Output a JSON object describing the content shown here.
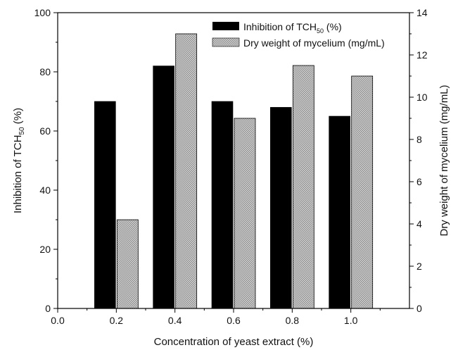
{
  "chart_data": {
    "type": "bar",
    "xlabel": "Concentration of yeast extract (%)",
    "ylabel_left": {
      "main": "Inhibition of TCH",
      "sub": "50",
      "tail": " (%)"
    },
    "ylabel_right": "Dry weight of mycelium (mg/mL)",
    "xlim": [
      0.0,
      1.2
    ],
    "ylim_left": [
      0,
      100
    ],
    "ylim_right": [
      0,
      14
    ],
    "xticks": [
      "0.0",
      "0.2",
      "0.4",
      "0.6",
      "0.8",
      "1.0"
    ],
    "xtick_values": [
      0.0,
      0.2,
      0.4,
      0.6,
      0.8,
      1.0
    ],
    "yticks_left": [
      "0",
      "20",
      "40",
      "60",
      "80",
      "100"
    ],
    "yticks_right": [
      "0",
      "2",
      "4",
      "6",
      "8",
      "10",
      "12",
      "14"
    ],
    "categories": [
      0.2,
      0.4,
      0.6,
      0.8,
      1.0
    ],
    "series": [
      {
        "legend": {
          "main": "Inhibition of TCH",
          "sub": "50",
          "tail": " (%)"
        },
        "axis": "left",
        "values": [
          70,
          82,
          70,
          68,
          65
        ],
        "color": "#000000"
      },
      {
        "legend": {
          "main": "Dry weight of mycelium (mg/mL)",
          "sub": "",
          "tail": ""
        },
        "axis": "right",
        "values": [
          4.2,
          13.0,
          9.0,
          11.5,
          11.0
        ],
        "color": "#bdbdbd"
      }
    ],
    "legend_position": "top-right",
    "grid": false
  }
}
